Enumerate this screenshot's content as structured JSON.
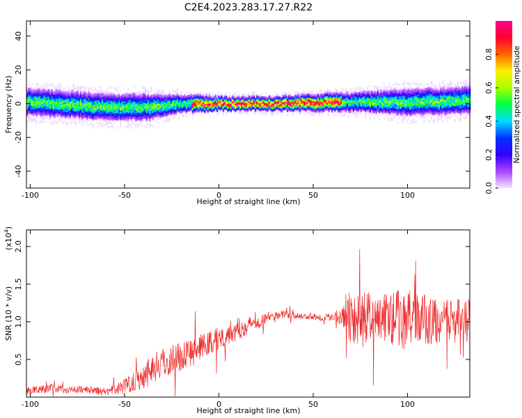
{
  "figure_title": "C2E4.2023.283.17.27.R22",
  "colors": {
    "snr_line": "#ee2222",
    "frame": "#000000",
    "background": "#ffffff"
  },
  "chart_data": [
    {
      "type": "heatmap",
      "title": "",
      "xlabel": "Height of straight line (km)",
      "ylabel": "Frequency (Hz)",
      "xlim": [
        -102,
        133
      ],
      "ylim": [
        -50,
        49
      ],
      "xticks": [
        -100,
        -50,
        0,
        50,
        100
      ],
      "yticks": [
        40,
        20,
        0,
        -20,
        -40
      ],
      "grid": false,
      "description_points": [
        {
          "x": -100,
          "center_hz": 1,
          "halfwidth_hz": 6
        },
        {
          "x": -60,
          "center_hz": -2,
          "halfwidth_hz": 6
        },
        {
          "x": -40,
          "center_hz": -2,
          "halfwidth_hz": 6
        },
        {
          "x": -20,
          "center_hz": 0,
          "halfwidth_hz": 4
        },
        {
          "x": 0,
          "center_hz": 0,
          "halfwidth_hz": 3
        },
        {
          "x": 30,
          "center_hz": 0,
          "halfwidth_hz": 3
        },
        {
          "x": 65,
          "center_hz": 1,
          "halfwidth_hz": 4
        },
        {
          "x": 100,
          "center_hz": 1,
          "halfwidth_hz": 6
        },
        {
          "x": 133,
          "center_hz": 2,
          "halfwidth_hz": 6
        }
      ],
      "colorbar": {
        "label": "Normalized spectral amplitude",
        "range": [
          0.0,
          1.0
        ],
        "ticks": [
          0.0,
          0.2,
          0.4,
          0.6,
          0.8
        ],
        "colormap": [
          "#f2e6ff",
          "#aa44ff",
          "#3300ff",
          "#0033ff",
          "#00ddff",
          "#00ff44",
          "#aaff00",
          "#ffee00",
          "#ff6600",
          "#ff0033",
          "#ff0088"
        ]
      }
    },
    {
      "type": "line",
      "title": "",
      "xlabel": "Height of straight line (km)",
      "ylabel": "SNR (10 * v/v)",
      "y_multiplier_label": "(x10",
      "y_multiplier_exp": "4",
      "xlim": [
        -102,
        133
      ],
      "ylim": [
        0,
        2.22
      ],
      "xticks": [
        -100,
        -50,
        0,
        50,
        100
      ],
      "yticks": [
        0.5,
        1.0,
        1.5,
        2.0
      ],
      "grid": false,
      "series": [
        {
          "x": [
            -102,
            -90,
            -80,
            -70,
            -60,
            -55,
            -50,
            -45,
            -40,
            -35,
            -30,
            -25,
            -20,
            -15,
            -10,
            -5,
            0,
            5,
            10,
            15,
            20,
            25,
            30,
            35,
            40,
            45,
            50,
            55,
            60,
            65,
            70,
            75,
            80,
            85,
            90,
            95,
            100,
            105,
            110,
            115,
            120,
            125,
            130,
            133
          ],
          "values": [
            0.08,
            0.12,
            0.1,
            0.1,
            0.07,
            0.1,
            0.15,
            0.22,
            0.28,
            0.4,
            0.45,
            0.5,
            0.55,
            0.6,
            0.65,
            0.72,
            0.78,
            0.85,
            0.9,
            0.95,
            1.0,
            1.05,
            1.08,
            1.1,
            1.08,
            1.07,
            1.08,
            1.05,
            1.07,
            1.1,
            1.1,
            1.05,
            1.05,
            1.05,
            1.05,
            1.05,
            1.02,
            1.05,
            1.02,
            1.0,
            1.0,
            1.02,
            1.0,
            1.0
          ],
          "spread": [
            0.05,
            0.06,
            0.05,
            0.05,
            0.05,
            0.07,
            0.1,
            0.15,
            0.18,
            0.22,
            0.2,
            0.22,
            0.2,
            0.2,
            0.18,
            0.17,
            0.17,
            0.16,
            0.15,
            0.12,
            0.1,
            0.08,
            0.06,
            0.05,
            0.04,
            0.04,
            0.05,
            0.05,
            0.05,
            0.15,
            0.4,
            0.35,
            0.35,
            0.35,
            0.35,
            0.4,
            0.4,
            0.35,
            0.35,
            0.3,
            0.3,
            0.3,
            0.3,
            0.3
          ]
        }
      ]
    }
  ]
}
